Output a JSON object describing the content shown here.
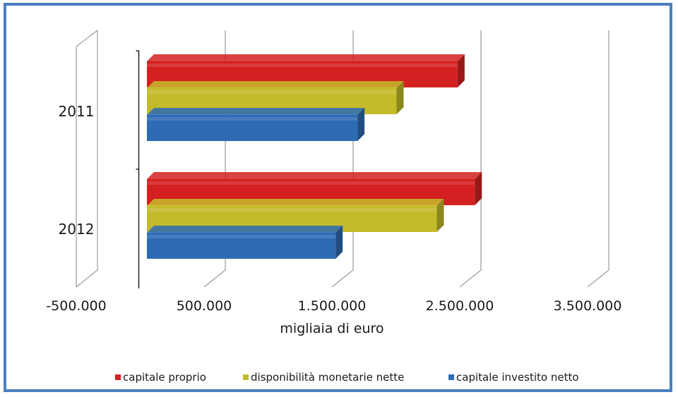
{
  "chart_data": {
    "type": "bar",
    "orientation": "horizontal",
    "style": "3d",
    "categories": [
      "2011",
      "2012"
    ],
    "series": [
      {
        "name": "capitale proprio",
        "values": [
          2700000,
          2850000
        ],
        "color": "#d42020"
      },
      {
        "name": "disponibilità monetarie nette",
        "values": [
          2170000,
          2520000
        ],
        "color": "#c4bb2a"
      },
      {
        "name": "capitale investito netto",
        "values": [
          1830000,
          1640000
        ],
        "color": "#2e6bb5"
      }
    ],
    "xlim": [
      -500000,
      3500000
    ],
    "x_ticks": [
      -500000,
      500000,
      1500000,
      2500000,
      3500000
    ],
    "x_tick_labels": [
      "-500.000",
      "500.000",
      "1.500.000",
      "2.500.000",
      "3.500.000"
    ],
    "xlabel": "migliaia di euro",
    "ylabel": "",
    "grid": true,
    "legend_position": "bottom"
  }
}
